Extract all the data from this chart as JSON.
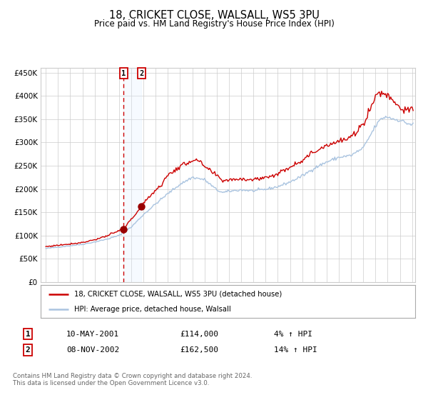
{
  "title": "18, CRICKET CLOSE, WALSALL, WS5 3PU",
  "subtitle": "Price paid vs. HM Land Registry's House Price Index (HPI)",
  "sale1_date": "10-MAY-2001",
  "sale1_price": 114000,
  "sale1_hpi_pct": "4%",
  "sale2_date": "08-NOV-2002",
  "sale2_price": 162500,
  "sale2_hpi_pct": "14%",
  "legend1": "18, CRICKET CLOSE, WALSALL, WS5 3PU (detached house)",
  "legend2": "HPI: Average price, detached house, Walsall",
  "footer": "Contains HM Land Registry data © Crown copyright and database right 2024.\nThis data is licensed under the Open Government Licence v3.0.",
  "hpi_color": "#aac4e0",
  "price_color": "#cc0000",
  "marker_color": "#990000",
  "bg_color": "#ffffff",
  "grid_color": "#cccccc",
  "span_color": "#ddeeff",
  "dashed_color": "#cc0000",
  "ylim": [
    0,
    460000
  ],
  "yticks": [
    0,
    50000,
    100000,
    150000,
    200000,
    250000,
    300000,
    350000,
    400000,
    450000
  ],
  "sale1_x": 2001.37,
  "sale2_x": 2002.84,
  "hpi_waypoints_t": [
    1995.0,
    1996.0,
    1997.0,
    1998.0,
    1999.0,
    2000.0,
    2001.0,
    2002.0,
    2003.0,
    2004.0,
    2005.0,
    2006.0,
    2007.0,
    2008.0,
    2009.0,
    2009.5,
    2010.0,
    2011.0,
    2012.0,
    2013.0,
    2014.0,
    2015.0,
    2016.0,
    2017.0,
    2018.0,
    2019.0,
    2020.0,
    2021.0,
    2022.0,
    2022.5,
    2023.0,
    2023.5,
    2024.0,
    2024.5,
    2025.0
  ],
  "hpi_waypoints_v": [
    72000,
    75000,
    78000,
    81000,
    86000,
    92000,
    100000,
    118000,
    145000,
    168000,
    190000,
    210000,
    225000,
    220000,
    198000,
    192000,
    195000,
    198000,
    196000,
    199000,
    205000,
    215000,
    228000,
    245000,
    258000,
    268000,
    272000,
    288000,
    335000,
    352000,
    355000,
    350000,
    348000,
    342000,
    338000
  ],
  "prop_waypoints_t": [
    1995.0,
    1996.0,
    1997.0,
    1998.0,
    1999.0,
    2000.0,
    2001.37,
    2002.84,
    2003.5,
    2004.5,
    2005.0,
    2006.0,
    2007.0,
    2007.5,
    2008.0,
    2009.0,
    2009.5,
    2010.0,
    2011.0,
    2012.0,
    2013.0,
    2014.0,
    2015.0,
    2016.0,
    2017.0,
    2018.0,
    2019.0,
    2020.0,
    2021.0,
    2022.0,
    2022.3,
    2023.0,
    2023.5,
    2024.0,
    2024.5,
    2025.0
  ],
  "prop_waypoints_v": [
    76000,
    79000,
    82000,
    85000,
    91000,
    99000,
    114000,
    162500,
    185000,
    210000,
    230000,
    248000,
    262000,
    260000,
    248000,
    228000,
    218000,
    220000,
    222000,
    220000,
    225000,
    232000,
    248000,
    262000,
    280000,
    295000,
    302000,
    310000,
    340000,
    398000,
    408000,
    402000,
    390000,
    375000,
    368000,
    370000
  ]
}
